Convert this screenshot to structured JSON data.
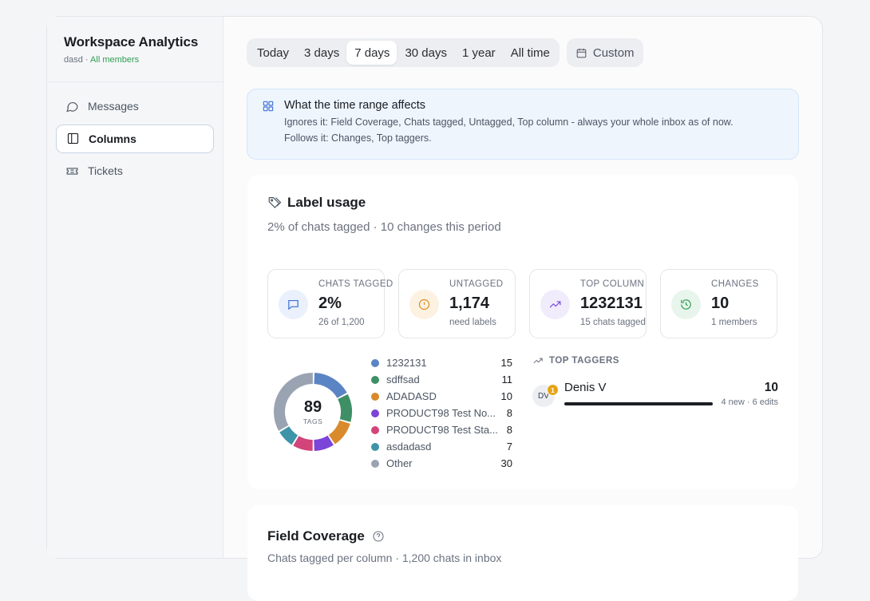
{
  "sidebar": {
    "title": "Workspace Analytics",
    "workspace": "dasd",
    "separator": "·",
    "members_link": "All members",
    "items": [
      {
        "label": "Messages",
        "icon": "message-icon"
      },
      {
        "label": "Columns",
        "icon": "columns-icon",
        "active": true
      },
      {
        "label": "Tickets",
        "icon": "ticket-icon"
      }
    ]
  },
  "range": {
    "options": [
      "Today",
      "3 days",
      "7 days",
      "30 days",
      "1 year",
      "All time"
    ],
    "selected": "7 days",
    "custom_label": "Custom"
  },
  "info": {
    "title": "What the time range affects",
    "ignores": "Ignores it: Field Coverage, Chats tagged, Untagged, Top column - always your whole inbox as of now.",
    "follows": "Follows it: Changes, Top taggers."
  },
  "label_usage": {
    "title": "Label usage",
    "subtitle": "2% of chats tagged · 10 changes this period",
    "stats": [
      {
        "label": "CHATS TAGGED",
        "value": "2%",
        "note": "26 of 1,200",
        "icon": "chat-icon",
        "color": "#3b6fd6",
        "bg": "#eaf0fc"
      },
      {
        "label": "UNTAGGED",
        "value": "1,174",
        "note": "need labels",
        "icon": "alert-circle-icon",
        "color": "#d98a1c",
        "bg": "#fdf2e2"
      },
      {
        "label": "TOP COLUMN",
        "value": "1232131",
        "note": "15 chats tagged",
        "icon": "trending-up-icon",
        "color": "#7c4ddb",
        "bg": "#f1ecfc"
      },
      {
        "label": "CHANGES",
        "value": "10",
        "note": "1 members",
        "icon": "history-icon",
        "color": "#2f9e52",
        "bg": "#e8f5ec"
      }
    ],
    "donut": {
      "total": "89",
      "caption": "TAGS"
    },
    "top_taggers_label": "TOP TAGGERS",
    "taggers": [
      {
        "initials": "DV",
        "badge": "1",
        "name": "Denis V",
        "count": "10",
        "meta": "4 new · 6 edits",
        "share": 1.0
      }
    ]
  },
  "chart_data": {
    "type": "pie",
    "categories": [
      "1232131",
      "sdffsad",
      "ADADASD",
      "PRODUCT98 Test No...",
      "PRODUCT98 Test Sta...",
      "asdadasd",
      "Other"
    ],
    "values": [
      15,
      11,
      10,
      8,
      8,
      7,
      30
    ],
    "colors": [
      "#5b84c4",
      "#3f8f66",
      "#d98a2b",
      "#7b45d8",
      "#d2447a",
      "#3d93a8",
      "#9aa3b2"
    ],
    "center_value": 89,
    "center_label": "TAGS"
  },
  "field_coverage": {
    "title": "Field Coverage",
    "subtitle": "Chats tagged per column · 1,200 chats in inbox"
  }
}
